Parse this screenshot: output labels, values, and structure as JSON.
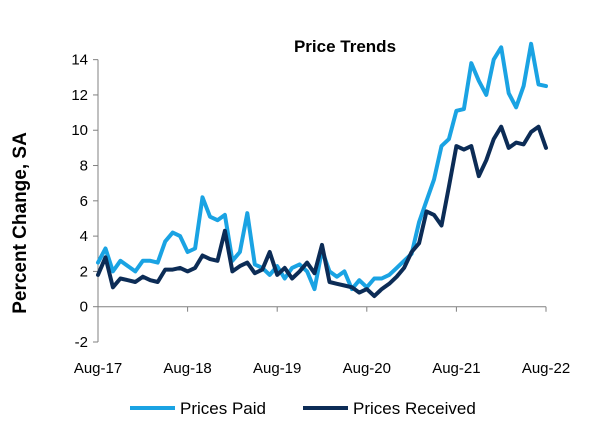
{
  "chart_data": {
    "type": "line",
    "title": "Price Trends",
    "ylabel": "Percent Change, SA",
    "xlabel": "",
    "ylim": [
      -2,
      15
    ],
    "yticks": [
      -2,
      0,
      2,
      4,
      6,
      8,
      10,
      12,
      14
    ],
    "x": [
      "2017-08",
      "2017-09",
      "2017-10",
      "2017-11",
      "2017-12",
      "2018-01",
      "2018-02",
      "2018-03",
      "2018-04",
      "2018-05",
      "2018-06",
      "2018-07",
      "2018-08",
      "2018-09",
      "2018-10",
      "2018-11",
      "2018-12",
      "2019-01",
      "2019-02",
      "2019-03",
      "2019-04",
      "2019-05",
      "2019-06",
      "2019-07",
      "2019-08",
      "2019-09",
      "2019-10",
      "2019-11",
      "2019-12",
      "2020-01",
      "2020-02",
      "2020-03",
      "2020-04",
      "2020-05",
      "2020-06",
      "2020-07",
      "2020-08",
      "2020-09",
      "2020-10",
      "2020-11",
      "2020-12",
      "2021-01",
      "2021-02",
      "2021-03",
      "2021-04",
      "2021-05",
      "2021-06",
      "2021-07",
      "2021-08",
      "2021-09",
      "2021-10",
      "2021-11",
      "2021-12",
      "2022-01",
      "2022-02",
      "2022-03",
      "2022-04",
      "2022-05",
      "2022-06",
      "2022-07",
      "2022-08"
    ],
    "xtick_labels": [
      "Aug-17",
      "Aug-18",
      "Aug-19",
      "Aug-20",
      "Aug-21",
      "Aug-22"
    ],
    "xtick_positions": [
      "2017-08",
      "2018-08",
      "2019-08",
      "2020-08",
      "2021-08",
      "2022-08"
    ],
    "grid": false,
    "legend": "bottom",
    "series": [
      {
        "name": "Prices Paid",
        "color": "#1AA3E3",
        "values": [
          2.5,
          3.3,
          2.0,
          2.6,
          2.3,
          2.0,
          2.6,
          2.6,
          2.5,
          3.7,
          4.2,
          4.0,
          3.1,
          3.3,
          6.2,
          5.1,
          4.9,
          5.2,
          2.6,
          3.1,
          5.3,
          2.4,
          2.2,
          1.8,
          2.3,
          1.6,
          2.2,
          2.4,
          2.0,
          1.0,
          3.2,
          2.0,
          1.7,
          2.0,
          1.0,
          1.5,
          1.1,
          1.6,
          1.6,
          1.8,
          2.2,
          2.6,
          3.0,
          4.8,
          6.0,
          7.2,
          9.1,
          9.5,
          11.1,
          11.2,
          13.8,
          12.8,
          12.0,
          14.0,
          14.7,
          12.1,
          11.3,
          12.5,
          14.9,
          12.6,
          12.5
        ]
      },
      {
        "name": "Prices Received",
        "color": "#0C2C56",
        "values": [
          1.8,
          2.8,
          1.1,
          1.6,
          1.5,
          1.4,
          1.7,
          1.5,
          1.4,
          2.1,
          2.1,
          2.2,
          2.0,
          2.2,
          2.9,
          2.7,
          2.6,
          4.3,
          2.0,
          2.3,
          2.5,
          1.9,
          2.1,
          3.1,
          1.8,
          2.2,
          1.6,
          2.0,
          2.5,
          1.9,
          3.5,
          1.4,
          1.3,
          1.2,
          1.1,
          0.8,
          1.0,
          0.6,
          1.0,
          1.3,
          1.7,
          2.2,
          3.1,
          3.6,
          5.4,
          5.2,
          4.6,
          6.8,
          9.1,
          8.9,
          9.1,
          7.4,
          8.3,
          9.5,
          10.2,
          9.0,
          9.3,
          9.2,
          9.9,
          10.2,
          9.0
        ]
      }
    ]
  }
}
